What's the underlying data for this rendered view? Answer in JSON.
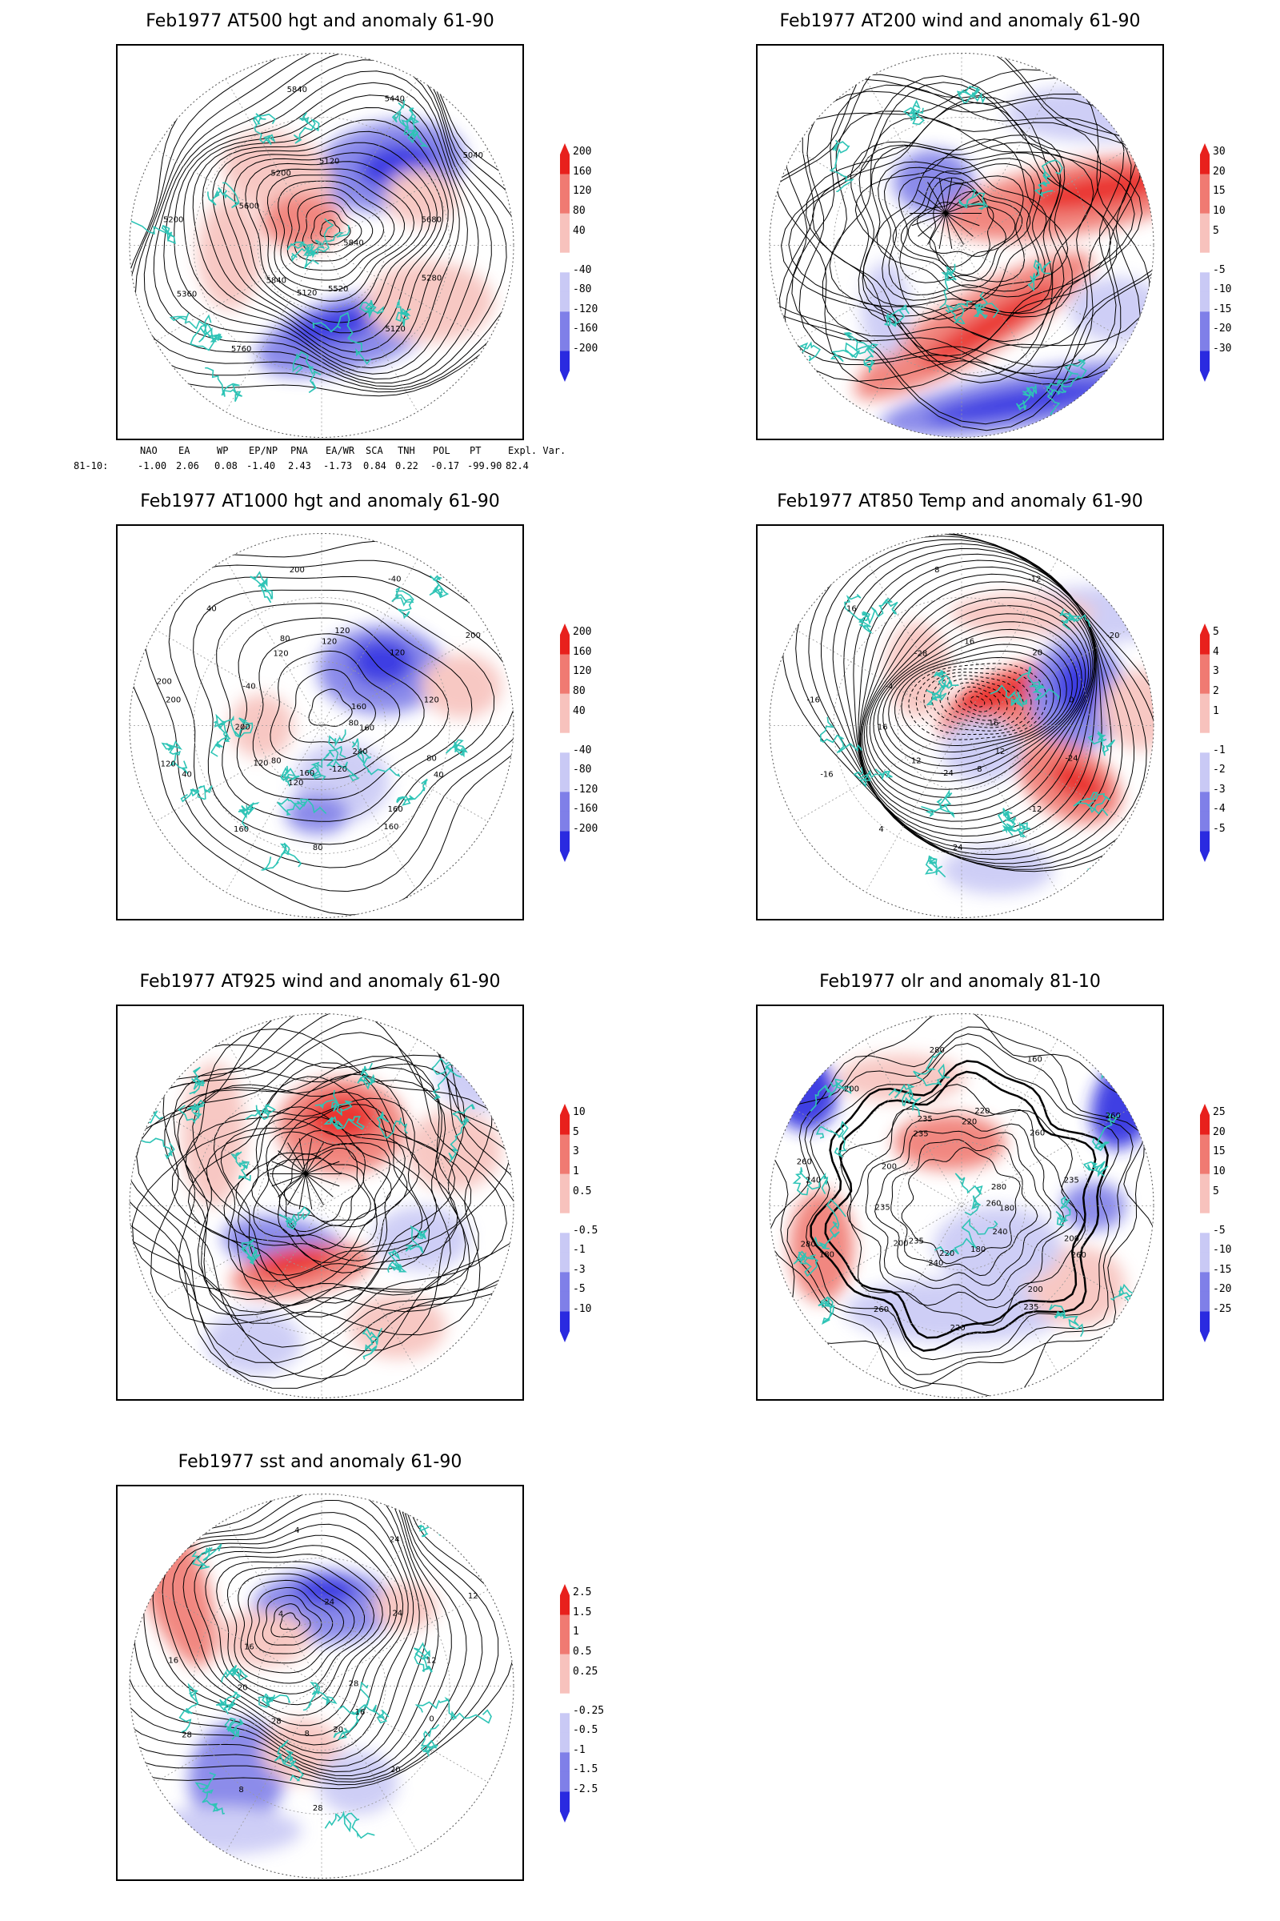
{
  "colors": {
    "contour": "#000000",
    "coast": "#2ec4b6",
    "pos_strong": "#e8201c",
    "pos_mid": "#f07a72",
    "pos_light": "#f7c2bd",
    "neg_light": "#c9c9f5",
    "neg_mid": "#7f7fe8",
    "neg_strong": "#2a2ae0"
  },
  "panels": [
    {
      "id": "z500",
      "title": "Feb1977 AT500 hgt and anomaly 61-90",
      "colorbar": [
        "200",
        "160",
        "120",
        "80",
        "40",
        "-40",
        "-80",
        "-120",
        "-160",
        "-200"
      ],
      "contour_labels": [
        "5840",
        "5840",
        "5120",
        "5120",
        "5200",
        "5040",
        "5120",
        "5200",
        "5280",
        "5360",
        "5440",
        "5520",
        "5600",
        "5680",
        "5760",
        "5840"
      ]
    },
    {
      "id": "w200",
      "title": "Feb1977 AT200 wind and anomaly 61-90",
      "colorbar": [
        "30",
        "20",
        "15",
        "10",
        "5",
        "-5",
        "-10",
        "-15",
        "-20",
        "-30"
      ],
      "contour_labels": []
    },
    {
      "id": "z1000",
      "title": "Feb1977 AT1000 hgt and anomaly 61-90",
      "colorbar": [
        "200",
        "160",
        "120",
        "80",
        "40",
        "-40",
        "-80",
        "-120",
        "-160",
        "-200"
      ],
      "contour_labels": [
        "80",
        "80",
        "120",
        "160",
        "200",
        "200",
        "160",
        "120",
        "80",
        "40",
        "-40",
        "-120",
        "-40",
        "120",
        "160",
        "200",
        "240",
        "200",
        "120",
        "80",
        "40",
        "160",
        "120",
        "120",
        "160",
        "200",
        "160",
        "120",
        "80",
        "40",
        "120"
      ]
    },
    {
      "id": "t850",
      "title": "Feb1977 AT850 Temp and anomaly 61-90",
      "colorbar": [
        "5",
        "4",
        "3",
        "2",
        "1",
        "-1",
        "-2",
        "-3",
        "-4",
        "-5"
      ],
      "contour_labels": [
        "16",
        "12",
        "16",
        "-12",
        "-16",
        "-20",
        "-24",
        "-28",
        "-24",
        "-16",
        "-12",
        "-8",
        "-4",
        "0",
        "4",
        "8",
        "12",
        "16",
        "20",
        "24",
        "16"
      ]
    },
    {
      "id": "w925",
      "title": "Feb1977 AT925 wind and anomaly 61-90",
      "colorbar": [
        "10",
        "5",
        "3",
        "1",
        "0.5",
        "-0.5",
        "-1",
        "-3",
        "-5",
        "-10"
      ],
      "contour_labels": []
    },
    {
      "id": "olr",
      "title": "Feb1977 olr and anomaly 81-10",
      "colorbar": [
        "25",
        "20",
        "15",
        "10",
        "5",
        "-5",
        "-10",
        "-15",
        "-20",
        "-25"
      ],
      "contour_labels": [
        "260",
        "235",
        "220",
        "200",
        "240",
        "260",
        "220",
        "235",
        "200",
        "180",
        "160",
        "180",
        "200",
        "235",
        "260",
        "280",
        "240",
        "235",
        "260",
        "220",
        "200",
        "180",
        "200",
        "220",
        "235",
        "260",
        "280",
        "240",
        "235",
        "260",
        "280"
      ]
    },
    {
      "id": "sst",
      "title": "Feb1977 sst and anomaly 61-90",
      "colorbar": [
        "2.5",
        "1.5",
        "1",
        "0.5",
        "0.25",
        "-0.25",
        "-0.5",
        "-1",
        "-1.5",
        "-2.5"
      ],
      "contour_labels": [
        "28",
        "28",
        "24",
        "20",
        "16",
        "12",
        "8",
        "4",
        "0",
        "28",
        "24",
        "20",
        "16",
        "12",
        "8",
        "4",
        "16",
        "20",
        "24",
        "28"
      ]
    }
  ],
  "teleconnections": {
    "headers": [
      "NAO",
      "EA",
      "WP",
      "EP/NP",
      "PNA",
      "EA/WR",
      "SCA",
      "TNH",
      "POL",
      "PT",
      "Expl. Var."
    ],
    "row_label": "81-10:",
    "values": [
      "-1.00",
      "2.06",
      "0.08",
      "-1.40",
      "2.43",
      "-1.73",
      "0.84",
      "0.22",
      "-0.17",
      "-99.90",
      "82.4"
    ]
  }
}
